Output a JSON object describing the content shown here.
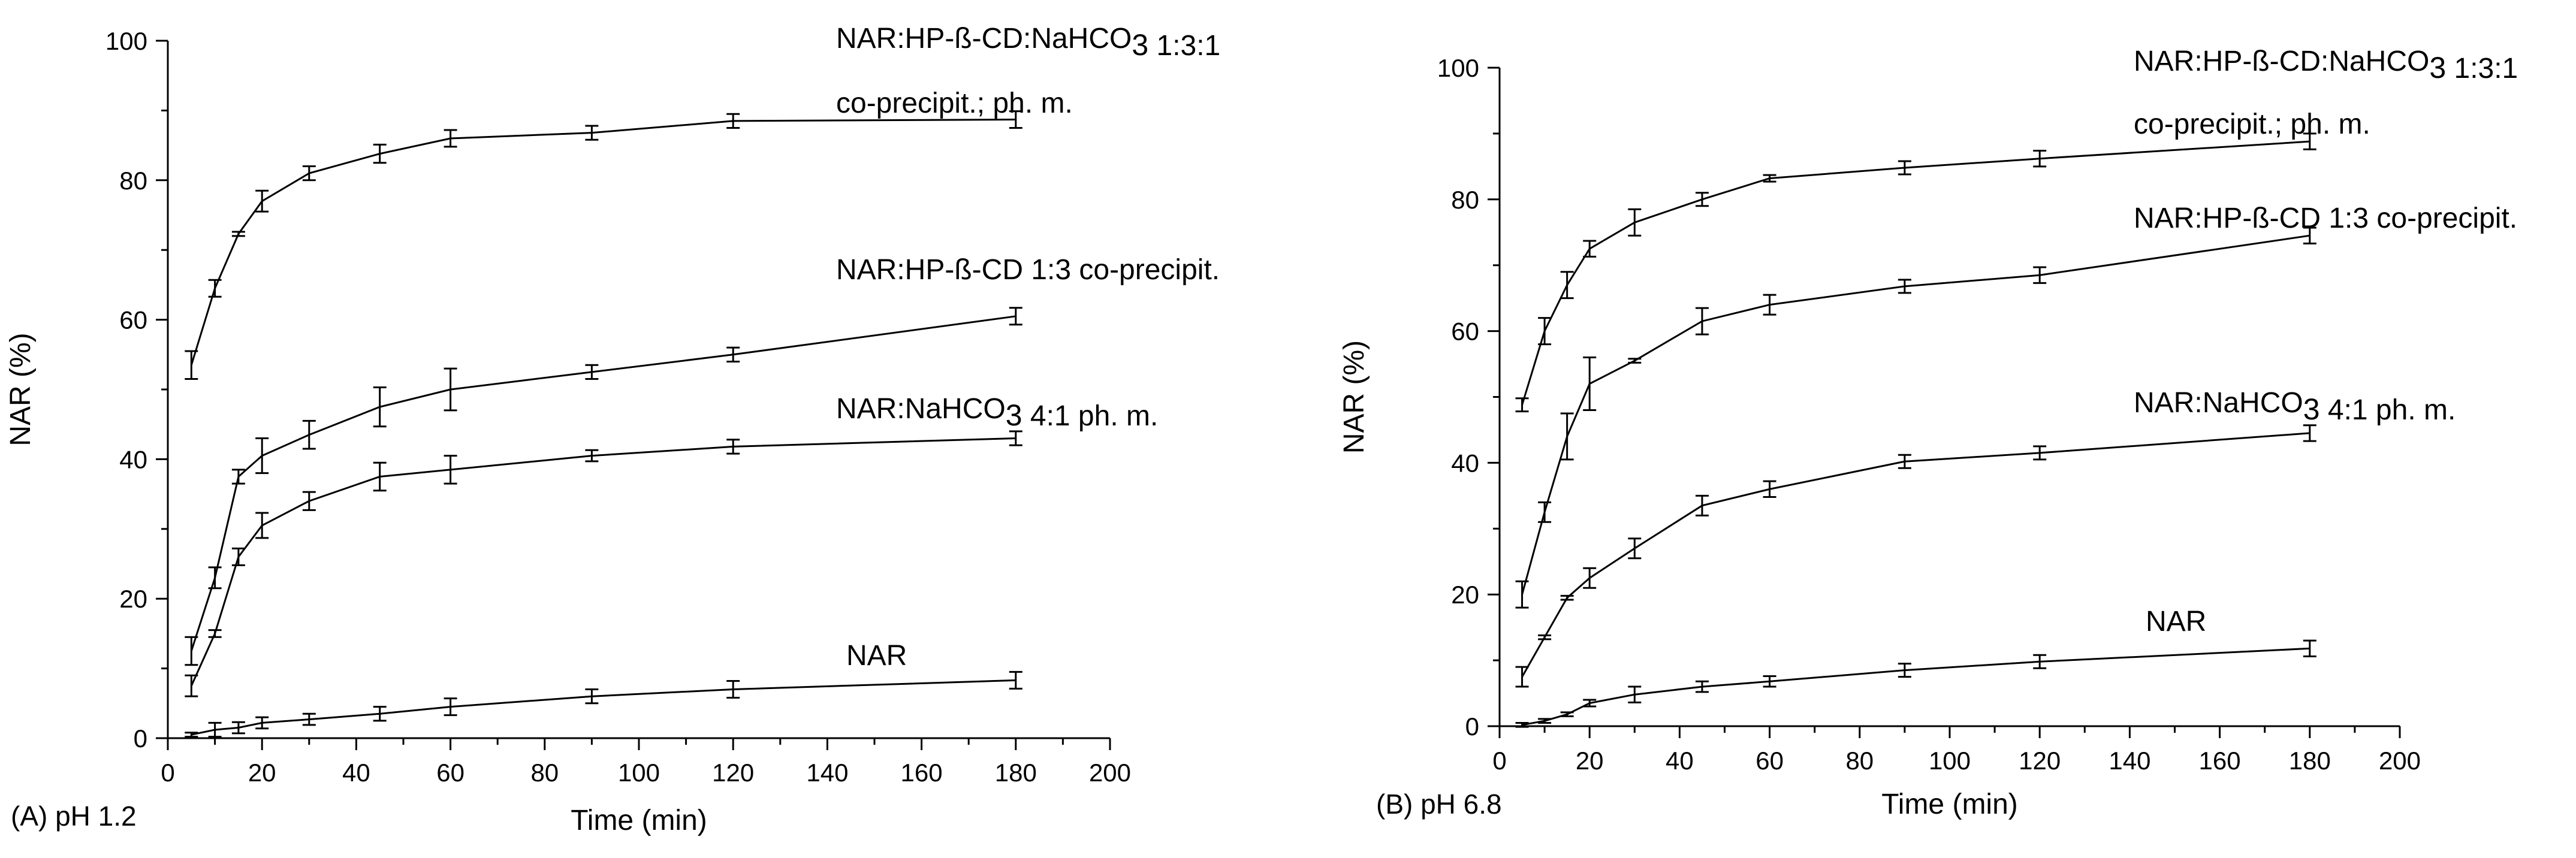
{
  "chart_data": [
    {
      "type": "line",
      "panel_label": "(A) pH 1.2",
      "xlabel": "Time (min)",
      "ylabel": "NAR (%)",
      "xlim": [
        0,
        200
      ],
      "ylim": [
        0,
        100
      ],
      "x_ticks": [
        0,
        20,
        40,
        60,
        80,
        100,
        120,
        140,
        160,
        180,
        200
      ],
      "y_ticks": [
        0,
        20,
        40,
        60,
        80,
        100
      ],
      "x": [
        5,
        10,
        15,
        20,
        30,
        45,
        60,
        90,
        120,
        180
      ],
      "series": [
        {
          "label_lines": [
            "NAR:HP-ß-CD:NaHCO3 1:3:1",
            "co-precipit.; ph. m."
          ],
          "values": [
            53.5,
            64.5,
            72.3,
            77.0,
            81.0,
            83.8,
            86.0,
            86.8,
            88.5,
            88.7
          ],
          "errors": [
            2.0,
            1.2,
            0.3,
            1.5,
            1.0,
            1.3,
            1.2,
            1.0,
            1.0,
            1.2
          ]
        },
        {
          "label_lines": [
            "NAR:HP-ß-CD 1:3 co-precipit."
          ],
          "values": [
            12.5,
            23.0,
            37.5,
            40.5,
            43.5,
            47.5,
            50.0,
            52.5,
            55.0,
            60.5
          ],
          "errors": [
            2.0,
            1.5,
            1.0,
            2.5,
            2.0,
            2.8,
            3.0,
            1.0,
            1.0,
            1.2
          ]
        },
        {
          "label_lines": [
            "NAR:NaHCO3 4:1 ph. m."
          ],
          "values": [
            7.5,
            15.0,
            26.0,
            30.5,
            34.0,
            37.5,
            38.5,
            40.5,
            41.8,
            43.0
          ],
          "errors": [
            1.5,
            0.5,
            1.2,
            1.8,
            1.3,
            2.0,
            2.0,
            0.8,
            1.0,
            1.0
          ]
        },
        {
          "label_lines": [
            "NAR"
          ],
          "values": [
            0.5,
            1.2,
            1.5,
            2.2,
            2.7,
            3.5,
            4.5,
            6.0,
            7.0,
            8.3
          ],
          "errors": [
            0.3,
            1.0,
            0.8,
            0.8,
            0.8,
            1.0,
            1.2,
            1.0,
            1.2,
            1.2
          ]
        }
      ]
    },
    {
      "type": "line",
      "panel_label": "(B) pH 6.8",
      "xlabel": "Time (min)",
      "ylabel": "NAR (%)",
      "xlim": [
        0,
        200
      ],
      "ylim": [
        0,
        100
      ],
      "x_ticks": [
        0,
        20,
        40,
        60,
        80,
        100,
        120,
        140,
        160,
        180,
        200
      ],
      "y_ticks": [
        0,
        20,
        40,
        60,
        80,
        100
      ],
      "x": [
        5,
        10,
        15,
        20,
        30,
        45,
        60,
        90,
        120,
        180
      ],
      "series": [
        {
          "label_lines": [
            "NAR:HP-ß-CD:NaHCO3 1:3:1",
            "co-precipit.; ph. m."
          ],
          "values": [
            48.8,
            60.0,
            67.0,
            72.5,
            76.5,
            80.0,
            83.2,
            84.8,
            86.2,
            88.8
          ],
          "errors": [
            1.0,
            2.0,
            2.0,
            1.2,
            2.0,
            1.0,
            0.5,
            1.0,
            1.2,
            1.2
          ]
        },
        {
          "label_lines": [
            "NAR:HP-ß-CD 1:3 co-precipit."
          ],
          "values": [
            20.0,
            32.5,
            44.0,
            52.0,
            55.5,
            61.5,
            64.0,
            66.8,
            68.5,
            74.5
          ],
          "errors": [
            2.0,
            1.5,
            3.5,
            4.0,
            0.3,
            2.0,
            1.5,
            1.0,
            1.2,
            1.2
          ]
        },
        {
          "label_lines": [
            "NAR:NaHCO3 4:1 ph. m."
          ],
          "values": [
            7.5,
            13.5,
            19.5,
            22.5,
            27.0,
            33.5,
            36.0,
            40.2,
            41.5,
            44.5
          ],
          "errors": [
            1.5,
            0.3,
            0.3,
            1.5,
            1.5,
            1.5,
            1.2,
            1.0,
            1.0,
            1.2
          ]
        },
        {
          "label_lines": [
            "NAR"
          ],
          "values": [
            0.2,
            0.8,
            1.8,
            3.5,
            4.8,
            6.0,
            6.8,
            8.5,
            9.8,
            11.8
          ],
          "errors": [
            0.3,
            0.3,
            0.3,
            0.5,
            1.2,
            0.8,
            0.8,
            1.0,
            1.0,
            1.2
          ]
        }
      ]
    }
  ]
}
